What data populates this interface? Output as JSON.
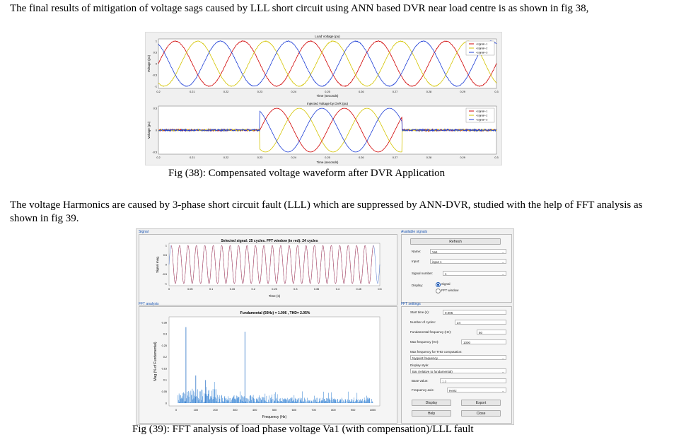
{
  "para1": "The final results of mitigation of voltage sags caused by LLL short circuit using ANN based DVR near load centre is as shown in fig 38,",
  "fig38": {
    "caption": "Fig (38): Compensated voltage waveform after DVR Application",
    "top": {
      "title": "Load Voltage (pu)",
      "xlabel": "Time (seconds)",
      "ylabel": "Voltage (pu)",
      "xticks": [
        "0.2",
        "0.21",
        "0.22",
        "0.23",
        "0.24",
        "0.25",
        "0.26",
        "0.27",
        "0.28",
        "0.29",
        "0.3"
      ],
      "yticks": [
        "1",
        "0.5",
        "0",
        "-0.5",
        "-1"
      ],
      "legend": [
        "<signal>-1",
        "<signal>-2",
        "<signal>-3"
      ]
    },
    "bottom": {
      "title": "Injected Voltage by DVR (pu)",
      "xlabel": "Time (seconds)",
      "ylabel": "Voltage (pu)",
      "xticks": [
        "0.2",
        "0.21",
        "0.22",
        "0.23",
        "0.24",
        "0.25",
        "0.26",
        "0.27",
        "0.28",
        "0.29",
        "0.3"
      ],
      "yticks": [
        "0.5",
        "0",
        "-0.5"
      ],
      "legend": [
        "<signal>-1",
        "<signal>-2",
        "<signal>-3"
      ]
    }
  },
  "para2": "The voltage Harmonics are caused by 3-phase short circuit fault (LLL) which are suppressed by ANN-DVR, studied with the help of FFT analysis as shown in fig 39.",
  "fig39": {
    "caption": "Fig (39): FFT analysis of load phase voltage Va1 (with compensation)/LLL fault",
    "signal_group": "Signal",
    "signal_title": "Selected signal: 25 cycles. FFT window (in red): 24 cycles",
    "signal_ylabel": "Signal mag.",
    "signal_xlabel": "Time (s)",
    "signal_xticks": [
      "0",
      "0.05",
      "0.1",
      "0.15",
      "0.2",
      "0.25",
      "0.3",
      "0.35",
      "0.4",
      "0.45",
      "0.5"
    ],
    "signal_yticks": [
      "1",
      "0.5",
      "0",
      "-0.5",
      "-1"
    ],
    "fft_group": "FFT analysis",
    "fft_title": "Fundamental (50Hz) = 1.006 , THD= 2.05%",
    "fft_ylabel": "Mag (% of Fundamental)",
    "fft_xlabel": "Frequency (Hz)",
    "fft_xticks": [
      "0",
      "100",
      "200",
      "300",
      "400",
      "500",
      "600",
      "700",
      "800",
      "900",
      "1000"
    ],
    "fft_yticks": [
      "0.35",
      "0.3",
      "0.25",
      "0.2",
      "0.15",
      "0.1",
      "0.05",
      "0"
    ],
    "available": {
      "title": "Available signals",
      "refresh": "Refresh",
      "name_label": "Name:",
      "name_value": "Va1",
      "input_label": "Input:",
      "input_value": "input 1",
      "signal_number_label": "Signal number:",
      "signal_number_value": "1",
      "display_label": "Display:",
      "radio_signal": "Signal",
      "radio_fft": "FFT window"
    },
    "settings": {
      "title": "FFT settings",
      "start_time_label": "Start time (s):",
      "start_time_value": "0.005",
      "cycles_label": "Number of cycles:",
      "cycles_value": "24",
      "fund_label": "Fundamental frequency (Hz):",
      "fund_value": "50",
      "maxf_label": "Max frequency (Hz):",
      "maxf_value": "1000",
      "thd_label": "Max frequency for THD computation:",
      "thd_value": "Nyquist frequency",
      "style_label": "Display style:",
      "style_value": "Bar (relative to fundamental)",
      "base_label": "Base value:",
      "base_value": "1.0",
      "axis_label": "Frequency axis:",
      "axis_value": "Hertz",
      "display_btn": "Display",
      "export_btn": "Export",
      "help_btn": "Help",
      "close_btn": "Close"
    }
  },
  "chart_data": [
    {
      "type": "line",
      "title": "Load Voltage (pu)",
      "xlabel": "Time (seconds)",
      "ylabel": "Voltage (pu)",
      "xlim": [
        0.2,
        0.3
      ],
      "ylim": [
        -1.1,
        1.1
      ],
      "frequency_hz": 50,
      "series": [
        {
          "name": "<signal>-1",
          "amplitude": 1.0,
          "phase_deg": 0,
          "color": "#d00000"
        },
        {
          "name": "<signal>-2",
          "amplitude": 1.0,
          "phase_deg": -120,
          "color": "#d4c400"
        },
        {
          "name": "<signal>-3",
          "amplitude": 1.0,
          "phase_deg": 120,
          "color": "#1f3fd6"
        }
      ]
    },
    {
      "type": "line",
      "title": "Injected Voltage by DVR (pu)",
      "xlabel": "Time (seconds)",
      "ylabel": "Voltage (pu)",
      "xlim": [
        0.2,
        0.3
      ],
      "ylim": [
        -0.55,
        0.55
      ],
      "frequency_hz": 50,
      "injection_window": [
        0.23,
        0.272
      ],
      "injection_amplitude": 0.5,
      "series": [
        {
          "name": "<signal>-1",
          "color": "#d00000"
        },
        {
          "name": "<signal>-2",
          "color": "#d4c400"
        },
        {
          "name": "<signal>-3",
          "color": "#1f3fd6"
        }
      ]
    },
    {
      "type": "line",
      "title": "Selected signal: 25 cycles. FFT window (in red): 24 cycles",
      "xlabel": "Time (s)",
      "ylabel": "Signal mag.",
      "xlim": [
        0,
        0.5
      ],
      "ylim": [
        -1,
        1
      ],
      "frequency_hz": 50,
      "amplitude": 1.0,
      "fft_window": [
        0.005,
        0.485
      ]
    },
    {
      "type": "bar",
      "title": "Fundamental (50Hz) = 1.006 , THD= 2.05%",
      "xlabel": "Frequency (Hz)",
      "ylabel": "Mag (% of Fundamental)",
      "xlim": [
        0,
        1000
      ],
      "ylim": [
        0,
        0.37
      ],
      "peaks": [
        {
          "x": 50,
          "y": 0.33
        },
        {
          "x": 350,
          "y": 0.31
        },
        {
          "x": 100,
          "y": 0.12
        },
        {
          "x": 150,
          "y": 0.1
        }
      ],
      "noise_floor": 0.03
    }
  ]
}
